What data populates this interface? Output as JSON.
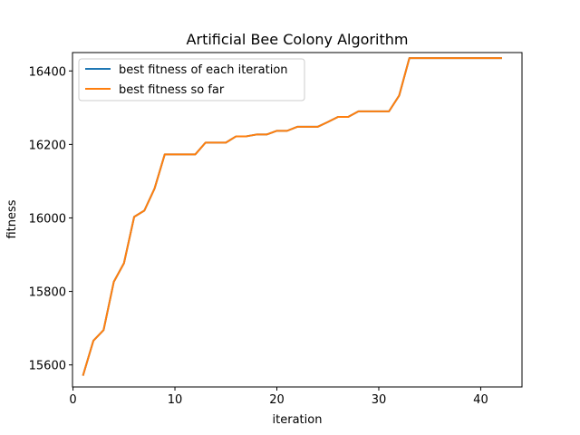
{
  "chart_data": {
    "type": "line",
    "title": "Artificial Bee Colony Algorithm",
    "xlabel": "iteration",
    "ylabel": "fitness",
    "xlim": [
      -0.05,
      44.05
    ],
    "ylim": [
      15540,
      16450
    ],
    "x_ticks": [
      0,
      10,
      20,
      30,
      40
    ],
    "y_ticks": [
      15600,
      15800,
      16000,
      16200,
      16400
    ],
    "grid": false,
    "legend_position": "top-left",
    "x": [
      1,
      2,
      3,
      4,
      5,
      6,
      7,
      8,
      9,
      10,
      11,
      12,
      13,
      14,
      15,
      16,
      17,
      18,
      19,
      20,
      21,
      22,
      23,
      24,
      25,
      26,
      27,
      28,
      29,
      30,
      31,
      32,
      33,
      34,
      35,
      36,
      37,
      38,
      39,
      40,
      41,
      42
    ],
    "series": [
      {
        "name": "best fitness of each iteration",
        "color": "#1f77b4",
        "values": [
          15573,
          15666,
          15695,
          15826,
          15877,
          16003,
          16020,
          16080,
          16173,
          16173,
          16173,
          16173,
          16205,
          16205,
          16205,
          16222,
          16222,
          16227,
          16227,
          16237,
          16237,
          16248,
          16248,
          16248,
          16261,
          16275,
          16275,
          16290,
          16290,
          16290,
          16290,
          16333,
          16435,
          16435,
          16435,
          16435,
          16435,
          16435,
          16435,
          16435,
          16435,
          16435
        ]
      },
      {
        "name": "best fitness so far",
        "color": "#ff7f0e",
        "values": [
          15573,
          15666,
          15695,
          15826,
          15877,
          16003,
          16020,
          16080,
          16173,
          16173,
          16173,
          16173,
          16205,
          16205,
          16205,
          16222,
          16222,
          16227,
          16227,
          16237,
          16237,
          16248,
          16248,
          16248,
          16261,
          16275,
          16275,
          16290,
          16290,
          16290,
          16290,
          16333,
          16435,
          16435,
          16435,
          16435,
          16435,
          16435,
          16435,
          16435,
          16435,
          16435
        ]
      }
    ]
  }
}
